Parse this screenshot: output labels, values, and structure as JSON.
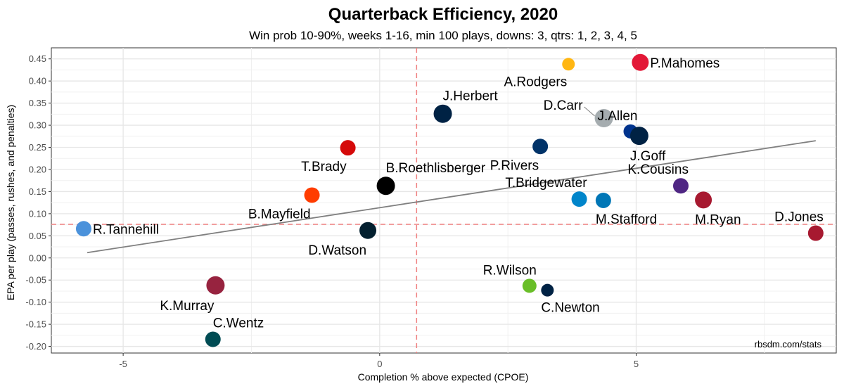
{
  "chart_data": {
    "type": "scatter",
    "title": "Quarterback Efficiency, 2020",
    "subtitle": "Win prob 10-90%, weeks 1-16, min 100 plays, downs: 3, qtrs: 1, 2, 3, 4, 5",
    "xlabel": "Completion % above expected (CPOE)",
    "ylabel": "EPA per play (passes, rushes, and penalties)",
    "caption": "rbsdm.com/stats",
    "xlim": [
      -6.4,
      8.9
    ],
    "ylim": [
      -0.215,
      0.475
    ],
    "x_ticks": [
      -5,
      0,
      5
    ],
    "x_tick_labels": [
      "-5",
      "0",
      "5"
    ],
    "y_ticks": [
      -0.2,
      -0.15,
      -0.1,
      -0.05,
      0.0,
      0.05,
      0.1,
      0.15,
      0.2,
      0.25,
      0.3,
      0.35,
      0.4,
      0.45
    ],
    "y_tick_labels": [
      "-0.20",
      "-0.15",
      "-0.10",
      "-0.05",
      "0.00",
      "0.05",
      "0.10",
      "0.15",
      "0.20",
      "0.25",
      "0.30",
      "0.35",
      "0.40",
      "0.45"
    ],
    "ref_lines": {
      "x_mean": 0.72,
      "y_mean": 0.076
    },
    "trend_line": {
      "x": [
        -5.7,
        8.5
      ],
      "y": [
        0.012,
        0.265
      ]
    },
    "points": [
      {
        "name": "P.Mahomes",
        "x": 5.08,
        "y": 0.442,
        "size": 12,
        "color": "#E31837",
        "label_anchor": "right"
      },
      {
        "name": "A.Rodgers",
        "x": 3.68,
        "y": 0.438,
        "size": 9,
        "color": "#FFB612",
        "label_anchor": "below-left"
      },
      {
        "name": "J.Herbert",
        "x": 1.23,
        "y": 0.326,
        "size": 13,
        "color": "#002244",
        "label_anchor": "above-right"
      },
      {
        "name": "D.Carr",
        "x": 4.37,
        "y": 0.316,
        "size": 13,
        "color": "#A5ACAF",
        "label_anchor": "left-leader"
      },
      {
        "name": "J.Allen",
        "x": 4.89,
        "y": 0.286,
        "size": 10,
        "color": "#00338D",
        "label_anchor": "above-left"
      },
      {
        "name": "J.Goff",
        "x": 5.06,
        "y": 0.276,
        "size": 13,
        "color": "#002244",
        "label_anchor": "below-right"
      },
      {
        "name": "P.Rivers",
        "x": 3.13,
        "y": 0.252,
        "size": 11,
        "color": "#013369",
        "label_anchor": "below-left"
      },
      {
        "name": "T.Brady",
        "x": -0.62,
        "y": 0.249,
        "size": 11,
        "color": "#D50A0A",
        "label_anchor": "below-left"
      },
      {
        "name": "B.Roethlisberger",
        "x": 0.12,
        "y": 0.163,
        "size": 13,
        "color": "#000000",
        "label_anchor": "above-right"
      },
      {
        "name": "K.Cousins",
        "x": 5.87,
        "y": 0.163,
        "size": 11,
        "color": "#4F2683",
        "label_anchor": "above-left"
      },
      {
        "name": "B.Mayfield",
        "x": -1.32,
        "y": 0.142,
        "size": 11,
        "color": "#FF3C00",
        "label_anchor": "below-left"
      },
      {
        "name": "T.Bridgewater",
        "x": 3.89,
        "y": 0.133,
        "size": 11,
        "color": "#0085CA",
        "label_anchor": "above-left"
      },
      {
        "name": "M.Stafford",
        "x": 4.36,
        "y": 0.13,
        "size": 11,
        "color": "#0076B6",
        "label_anchor": "below-right"
      },
      {
        "name": "M.Ryan",
        "x": 6.31,
        "y": 0.131,
        "size": 12,
        "color": "#A71930",
        "label_anchor": "below-right"
      },
      {
        "name": "R.Tannehill",
        "x": -5.77,
        "y": 0.066,
        "size": 11,
        "color": "#4B92DB",
        "label_anchor": "right"
      },
      {
        "name": "D.Watson",
        "x": -0.23,
        "y": 0.062,
        "size": 12,
        "color": "#03202F",
        "label_anchor": "below-left"
      },
      {
        "name": "D.Jones",
        "x": 8.5,
        "y": 0.056,
        "size": 11,
        "color": "#A71930",
        "label_anchor": "above-left"
      },
      {
        "name": "R.Wilson",
        "x": 2.92,
        "y": -0.063,
        "size": 10,
        "color": "#69BE28",
        "label_anchor": "above-left"
      },
      {
        "name": "C.Newton",
        "x": 3.27,
        "y": -0.073,
        "size": 9,
        "color": "#002244",
        "label_anchor": "below-right"
      },
      {
        "name": "K.Murray",
        "x": -3.2,
        "y": -0.062,
        "size": 13,
        "color": "#97233F",
        "label_anchor": "below-left"
      },
      {
        "name": "C.Wentz",
        "x": -3.25,
        "y": -0.184,
        "size": 11,
        "color": "#004C54",
        "label_anchor": "above-right"
      }
    ]
  }
}
